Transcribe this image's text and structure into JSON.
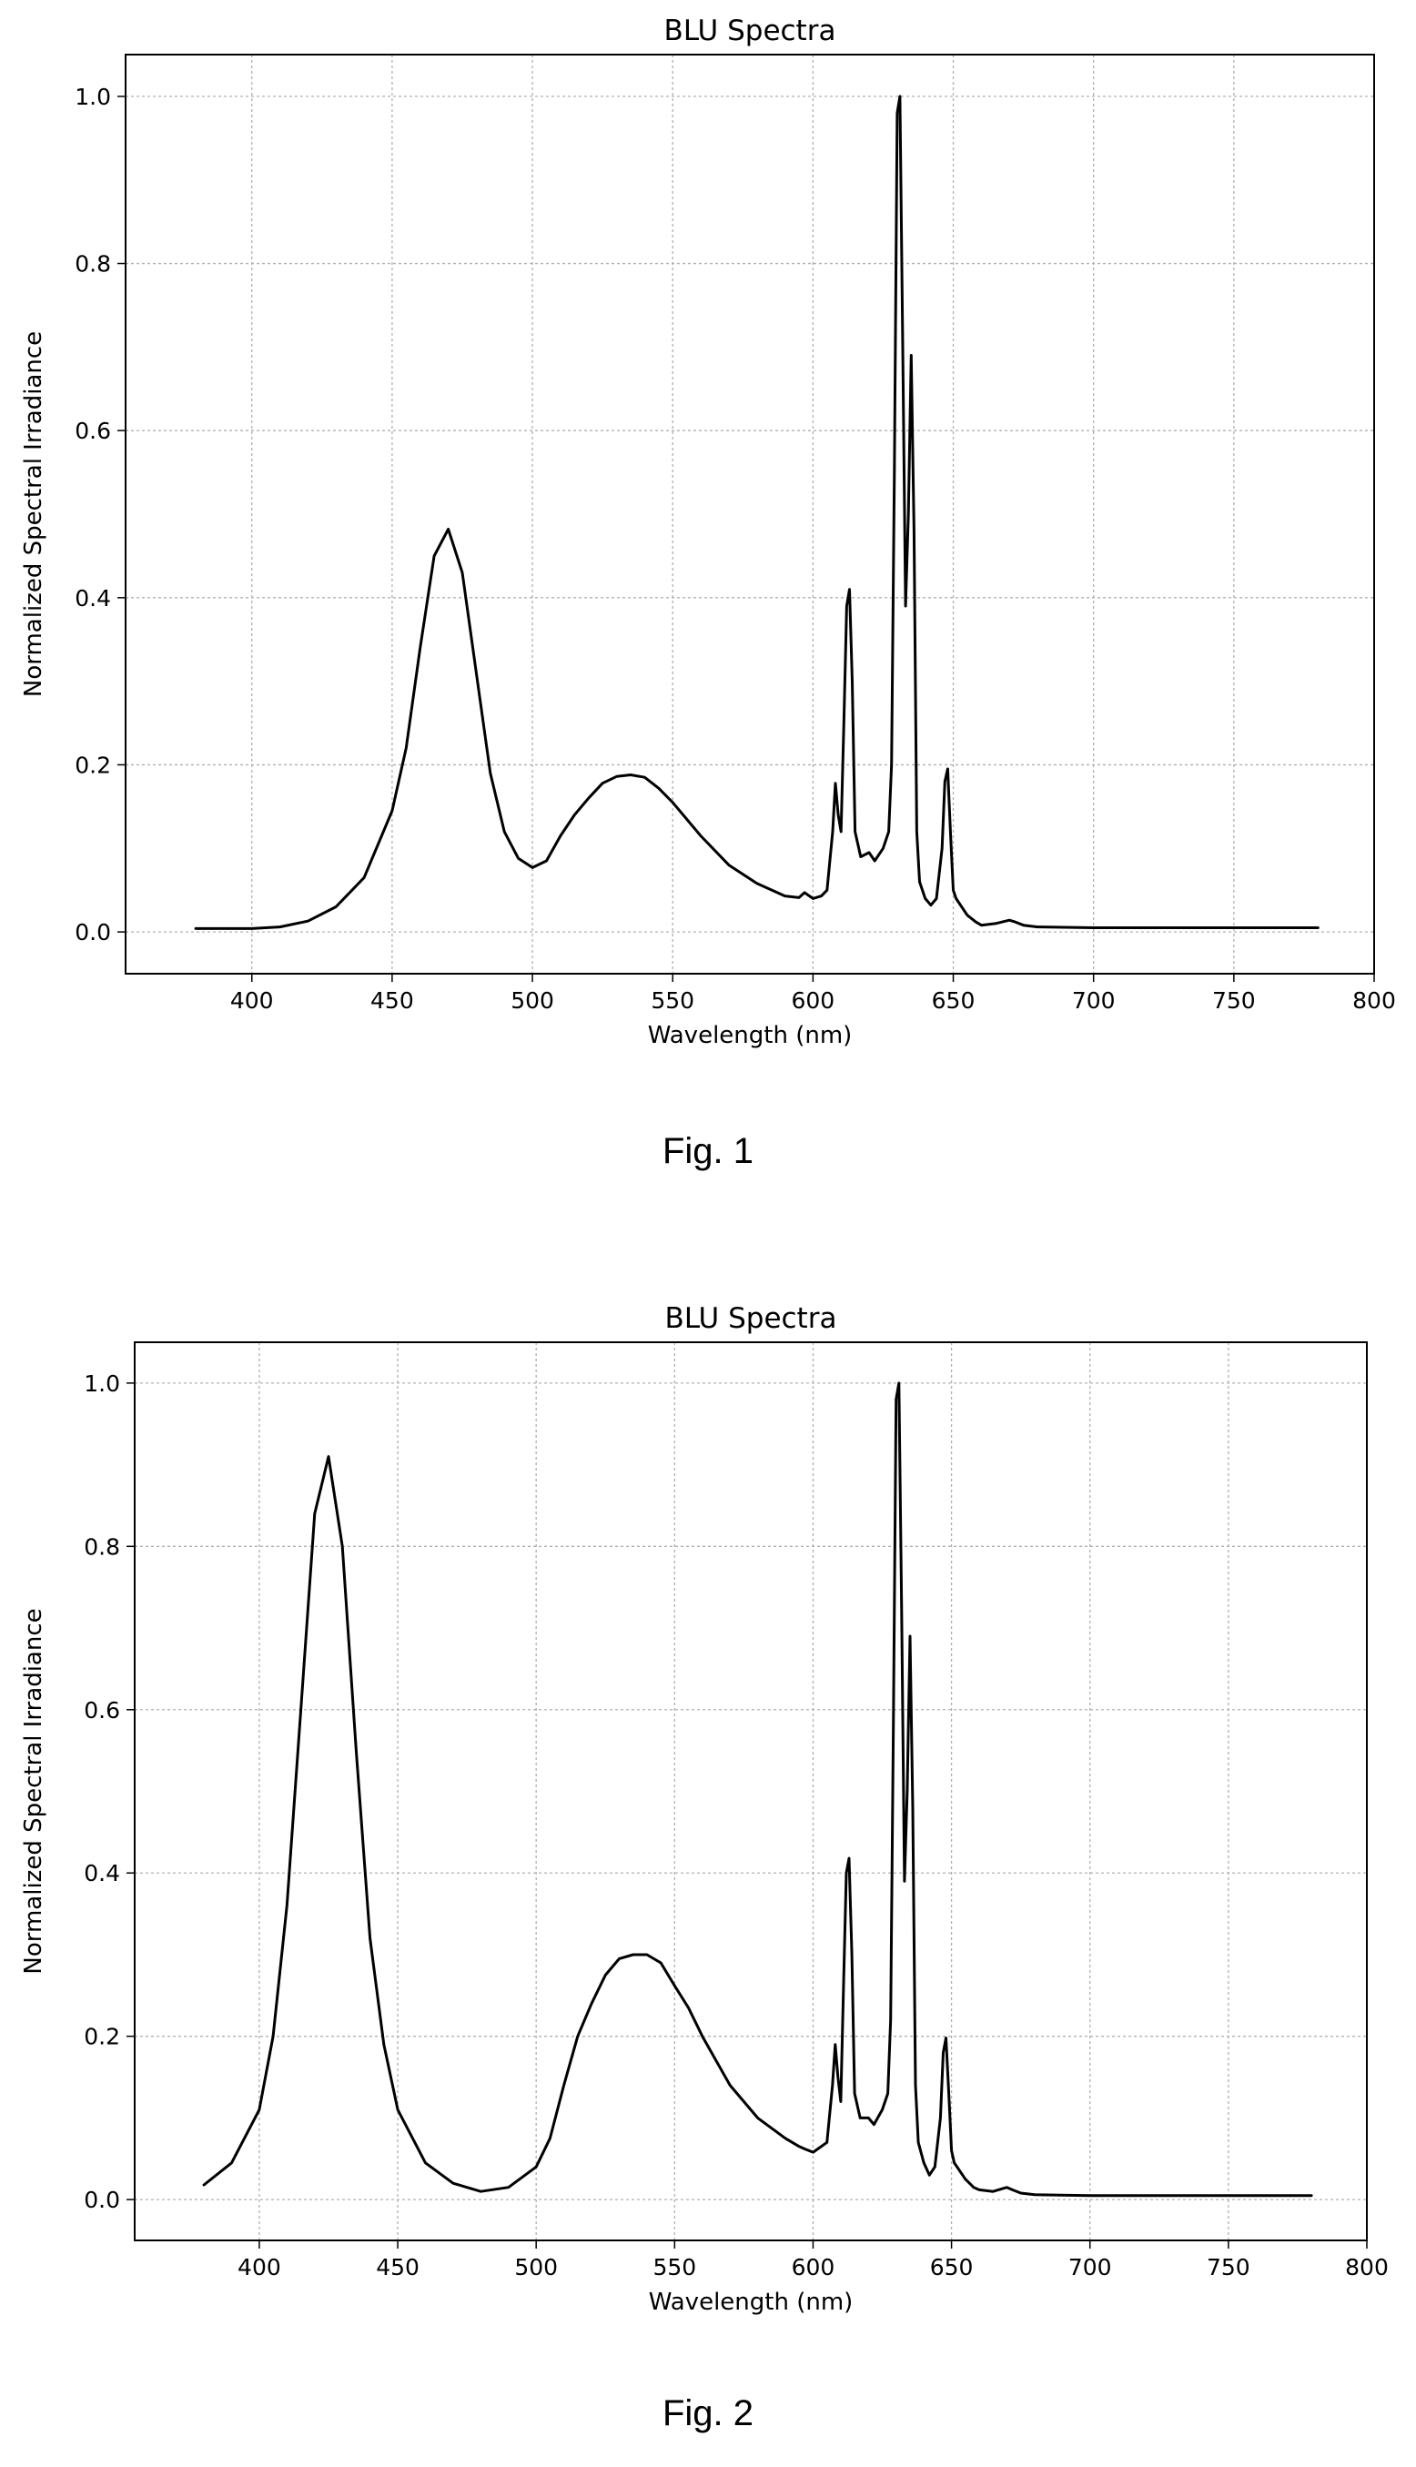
{
  "figures": [
    {
      "caption": "Fig. 1"
    },
    {
      "caption": "Fig. 2"
    }
  ],
  "chart_data": [
    {
      "type": "line",
      "title": "BLU Spectra",
      "xlabel": "Wavelength (nm)",
      "ylabel": "Normalized Spectral Irradiance",
      "xlim": [
        355,
        800
      ],
      "ylim": [
        -0.05,
        1.05
      ],
      "xticks": [
        400,
        450,
        500,
        550,
        600,
        650,
        700,
        750,
        800
      ],
      "yticks": [
        0.0,
        0.2,
        0.4,
        0.6,
        0.8,
        1.0
      ],
      "grid": true,
      "line_color": "#000000",
      "series": [
        {
          "x": [
            380,
            400,
            410,
            420,
            430,
            440,
            450,
            455,
            460,
            465,
            470,
            475,
            480,
            485,
            490,
            495,
            500,
            505,
            510,
            515,
            520,
            525,
            530,
            535,
            540,
            545,
            550,
            560,
            570,
            580,
            590,
            595,
            597,
            600,
            603,
            605,
            607,
            608,
            609,
            610,
            611,
            612,
            613,
            614,
            615,
            617,
            620,
            622,
            625,
            627,
            628,
            629,
            630,
            631,
            632,
            633,
            634,
            635,
            636,
            637,
            638,
            640,
            642,
            644,
            646,
            647,
            648,
            649,
            650,
            651,
            652,
            655,
            658,
            660,
            665,
            670,
            672,
            675,
            680,
            700,
            750,
            780
          ],
          "y": [
            0.004,
            0.004,
            0.006,
            0.013,
            0.03,
            0.065,
            0.145,
            0.22,
            0.34,
            0.45,
            0.482,
            0.43,
            0.31,
            0.19,
            0.12,
            0.088,
            0.077,
            0.085,
            0.115,
            0.14,
            0.16,
            0.178,
            0.186,
            0.188,
            0.185,
            0.172,
            0.155,
            0.115,
            0.08,
            0.058,
            0.043,
            0.041,
            0.047,
            0.04,
            0.043,
            0.05,
            0.12,
            0.178,
            0.14,
            0.12,
            0.25,
            0.39,
            0.41,
            0.3,
            0.12,
            0.09,
            0.095,
            0.085,
            0.1,
            0.12,
            0.2,
            0.55,
            0.98,
            1.0,
            0.7,
            0.39,
            0.5,
            0.69,
            0.48,
            0.12,
            0.06,
            0.04,
            0.032,
            0.04,
            0.1,
            0.18,
            0.195,
            0.12,
            0.05,
            0.04,
            0.035,
            0.02,
            0.012,
            0.008,
            0.01,
            0.014,
            0.012,
            0.008,
            0.006,
            0.005,
            0.005,
            0.005
          ]
        }
      ]
    },
    {
      "type": "line",
      "title": "BLU Spectra",
      "xlabel": "Wavelength (nm)",
      "ylabel": "Normalized Spectral Irradiance",
      "xlim": [
        355,
        800
      ],
      "ylim": [
        -0.05,
        1.05
      ],
      "xticks": [
        400,
        450,
        500,
        550,
        600,
        650,
        700,
        750,
        800
      ],
      "yticks": [
        0.0,
        0.2,
        0.4,
        0.6,
        0.8,
        1.0
      ],
      "grid": true,
      "line_color": "#000000",
      "series": [
        {
          "x": [
            380,
            390,
            400,
            405,
            410,
            415,
            420,
            425,
            430,
            435,
            440,
            445,
            450,
            460,
            470,
            480,
            490,
            500,
            505,
            510,
            515,
            520,
            525,
            530,
            535,
            540,
            545,
            550,
            555,
            560,
            570,
            580,
            590,
            595,
            597,
            600,
            605,
            607,
            608,
            609,
            610,
            611,
            612,
            613,
            614,
            615,
            617,
            620,
            622,
            625,
            627,
            628,
            629,
            630,
            631,
            632,
            633,
            634,
            635,
            636,
            637,
            638,
            640,
            642,
            644,
            646,
            647,
            648,
            649,
            650,
            651,
            652,
            655,
            658,
            660,
            665,
            670,
            672,
            675,
            680,
            700,
            750,
            780
          ],
          "y": [
            0.018,
            0.045,
            0.11,
            0.2,
            0.36,
            0.6,
            0.84,
            0.91,
            0.8,
            0.55,
            0.32,
            0.19,
            0.11,
            0.045,
            0.02,
            0.01,
            0.015,
            0.04,
            0.075,
            0.14,
            0.2,
            0.24,
            0.275,
            0.295,
            0.3,
            0.3,
            0.29,
            0.262,
            0.235,
            0.2,
            0.14,
            0.1,
            0.075,
            0.065,
            0.062,
            0.058,
            0.07,
            0.14,
            0.19,
            0.15,
            0.12,
            0.26,
            0.4,
            0.418,
            0.3,
            0.13,
            0.1,
            0.1,
            0.092,
            0.11,
            0.13,
            0.22,
            0.58,
            0.98,
            1.0,
            0.72,
            0.39,
            0.5,
            0.69,
            0.48,
            0.14,
            0.07,
            0.045,
            0.03,
            0.04,
            0.1,
            0.18,
            0.198,
            0.13,
            0.06,
            0.045,
            0.04,
            0.025,
            0.015,
            0.012,
            0.01,
            0.015,
            0.012,
            0.008,
            0.006,
            0.005,
            0.005,
            0.005
          ]
        }
      ]
    }
  ]
}
